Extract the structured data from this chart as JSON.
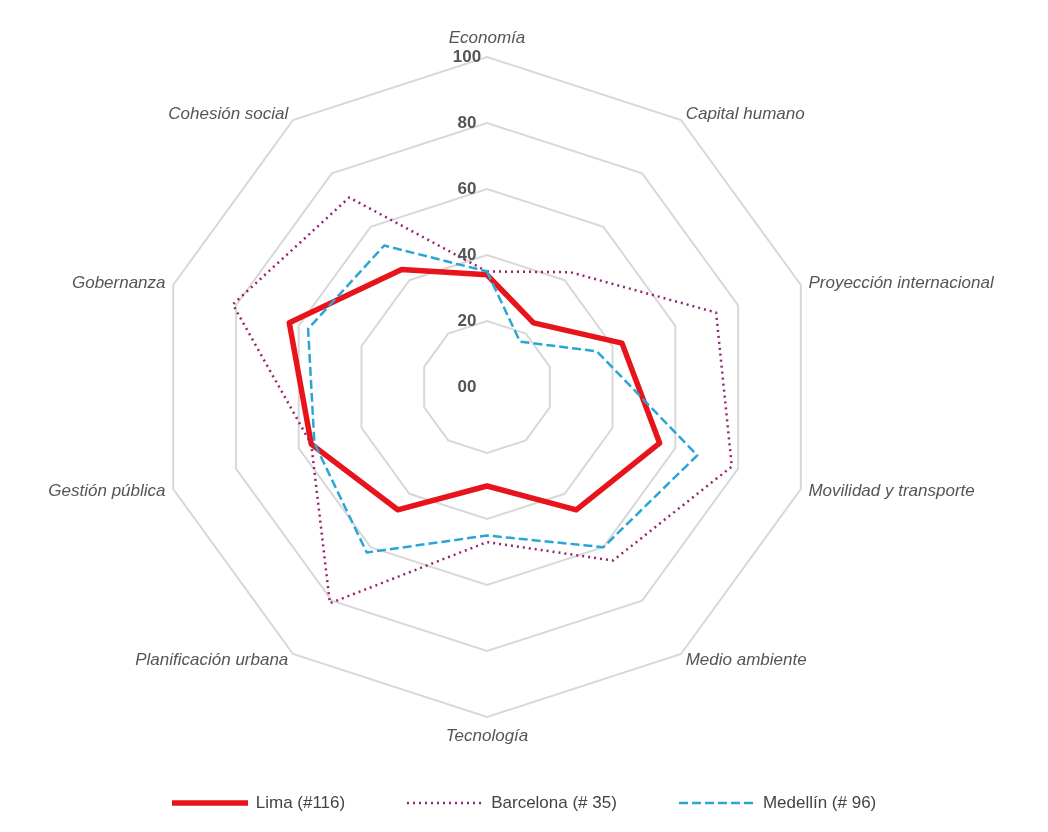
{
  "chart_data": {
    "type": "radar",
    "categories": [
      "Economía",
      "Capital humano",
      "Proyección internacional",
      "Movilidad y transporte",
      "Medio ambiente",
      "Tecnología",
      "Planificación urbana",
      "Gestión pública",
      "Gobernanza",
      "Cohesión social"
    ],
    "series": [
      {
        "name": "Lima (#116)",
        "color": "#e8141b",
        "line_style": "solid",
        "values": [
          34,
          24,
          43,
          55,
          46,
          30,
          46,
          56,
          63,
          44
        ]
      },
      {
        "name": "Barcelona (# 35)",
        "color": "#93246f",
        "line_style": "dotted",
        "values": [
          35,
          43,
          73,
          78,
          65,
          47,
          81,
          56,
          81,
          71
        ]
      },
      {
        "name": "Medellín (# 96)",
        "color": "#2aa6d4",
        "line_style": "dashed",
        "values": [
          35,
          17,
          35,
          67,
          60,
          45,
          62,
          55,
          57,
          53
        ]
      }
    ],
    "ylim": [
      0,
      100
    ],
    "yticks": [
      {
        "value": 0,
        "label": "00"
      },
      20,
      40,
      60,
      80,
      100
    ],
    "grid": true,
    "legend": "bottom"
  }
}
